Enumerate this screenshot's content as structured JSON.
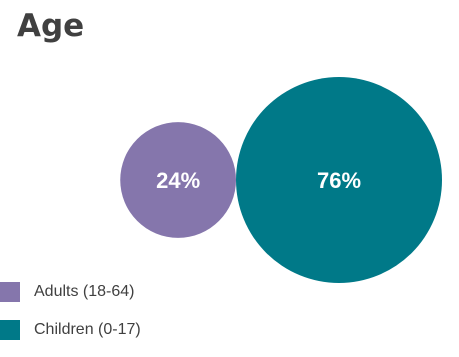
{
  "chart_data": {
    "type": "bubble",
    "title": "Age",
    "series": [
      {
        "name": "Adults (18-64)",
        "value": 24,
        "label": "24%",
        "color": "#8576ac"
      },
      {
        "name": "Children (0-17)",
        "value": 76,
        "label": "76%",
        "color": "#007988"
      }
    ]
  },
  "colors": {
    "text": "#404040",
    "label": "#ffffff"
  }
}
